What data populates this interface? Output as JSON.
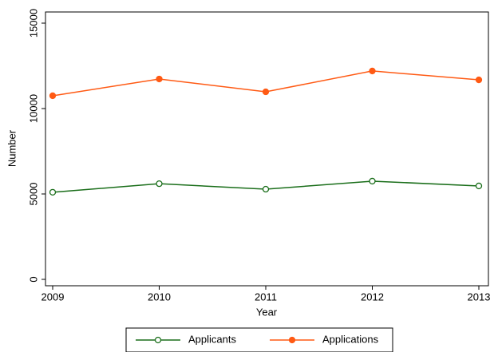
{
  "chart_data": {
    "type": "line",
    "x": [
      2009,
      2010,
      2011,
      2012,
      2013
    ],
    "series": [
      {
        "name": "Applicants",
        "color": "#1a6e1a",
        "marker": "hollow",
        "values": [
          5100,
          5600,
          5280,
          5750,
          5470
        ]
      },
      {
        "name": "Applications",
        "color": "#ff5a14",
        "marker": "filled",
        "values": [
          10750,
          11730,
          10980,
          12200,
          11680
        ]
      }
    ],
    "xlabel": "Year",
    "ylabel": "Number",
    "xlim": [
      2009,
      2013
    ],
    "xticks": [
      2009,
      2010,
      2011,
      2012,
      2013
    ],
    "ylim": [
      0,
      15000
    ],
    "yticks": [
      0,
      5000,
      10000,
      15000
    ],
    "legend": "bottom"
  }
}
